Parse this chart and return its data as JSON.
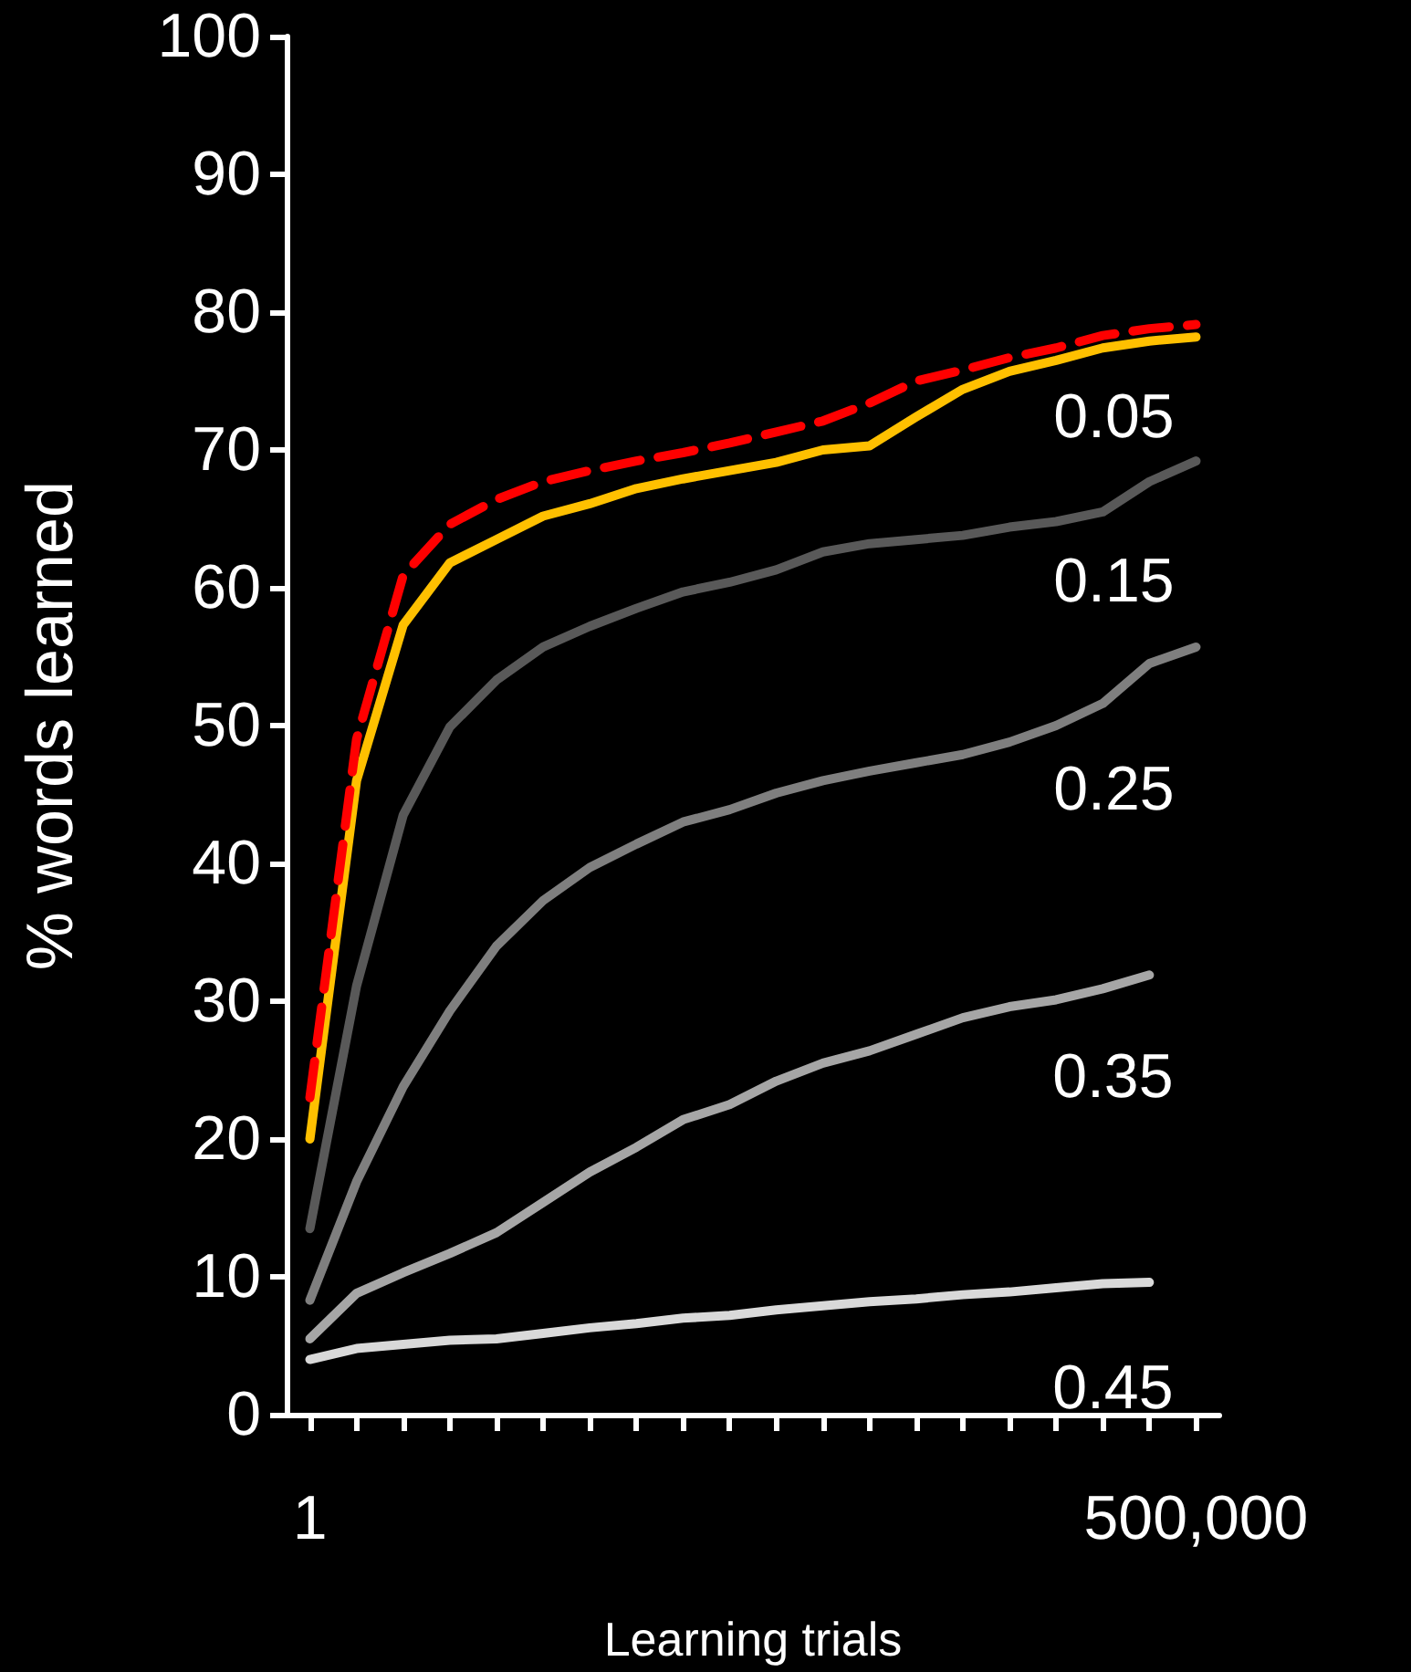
{
  "chart_data": {
    "type": "line",
    "xlabel": "Learning trials",
    "ylabel": "% words learned",
    "categories": [
      "1",
      null,
      null,
      null,
      null,
      null,
      null,
      null,
      null,
      null,
      null,
      null,
      null,
      null,
      null,
      null,
      null,
      null,
      null,
      "500,000"
    ],
    "ylim": [
      0,
      100
    ],
    "yticks": [
      0,
      10,
      20,
      30,
      40,
      50,
      60,
      70,
      80,
      90,
      100
    ],
    "grid": false,
    "legend": false,
    "marker": "none",
    "line_style": "solid",
    "series": [
      {
        "color": "#ff0000",
        "line_style": "dashed",
        "values": [
          23,
          49,
          60.9,
          64.6,
          66.4,
          67.7,
          68.5,
          69.2,
          69.8,
          70.5,
          71.3,
          72.1,
          73.4,
          75,
          75.8,
          76.7,
          77.4,
          78.3,
          78.8,
          79.1
        ]
      },
      {
        "name": "0.05",
        "color": "#ffc000",
        "values": [
          20,
          46,
          57.3,
          61.8,
          63.5,
          65.2,
          66.1,
          67.2,
          67.9,
          68.5,
          69.1,
          70,
          70.3,
          72.4,
          74.4,
          75.7,
          76.5,
          77.4,
          77.9,
          78.2
        ]
      },
      {
        "name": "0.15",
        "color": "#595959",
        "values": [
          13.5,
          31.1,
          43.5,
          49.9,
          53.3,
          55.7,
          57.2,
          58.5,
          59.7,
          60.4,
          61.3,
          62.6,
          63.2,
          63.5,
          63.8,
          64.4,
          64.8,
          65.5,
          67.7,
          69.2
        ]
      },
      {
        "name": "0.25",
        "color": "#7f7f7f",
        "values": [
          8.3,
          16.9,
          23.8,
          29.3,
          34,
          37.3,
          39.7,
          41.4,
          43,
          43.9,
          45.1,
          46,
          46.7,
          47.3,
          47.9,
          48.8,
          50,
          51.6,
          54.5,
          55.7
        ]
      },
      {
        "name": "0.35",
        "color": "#a6a6a6",
        "values": [
          5.5,
          8.8,
          10.3,
          11.7,
          13.2,
          15.4,
          17.6,
          19.4,
          21.4,
          22.5,
          24.2,
          25.5,
          26.4,
          27.6,
          28.8,
          29.6,
          30.1,
          30.9,
          31.9,
          null
        ]
      },
      {
        "name": "0.45",
        "color": "#d9d9d9",
        "values": [
          4,
          4.8,
          5.1,
          5.4,
          5.5,
          5.9,
          6.3,
          6.6,
          7,
          7.2,
          7.6,
          7.9,
          8.2,
          8.4,
          8.7,
          8.9,
          9.2,
          9.5,
          9.6,
          null
        ]
      }
    ]
  }
}
